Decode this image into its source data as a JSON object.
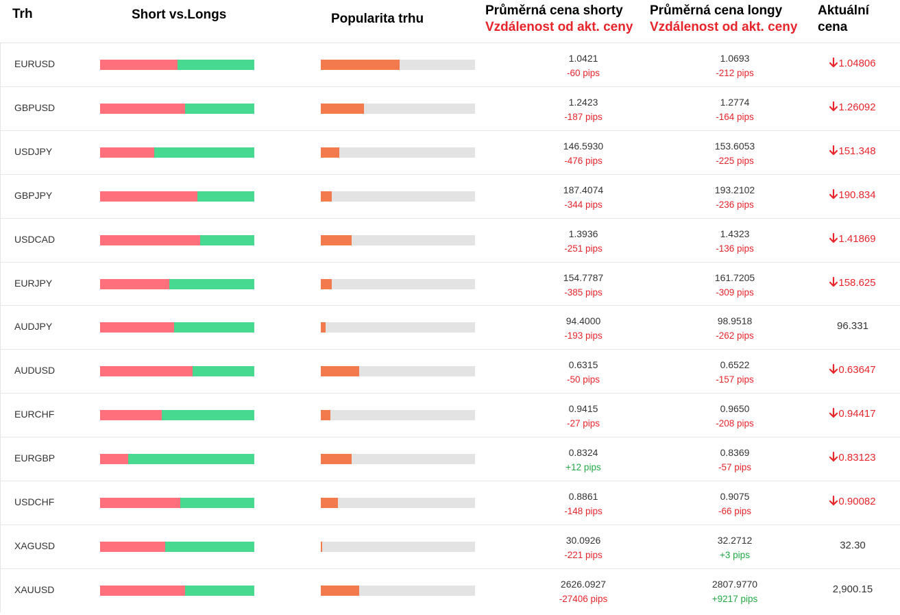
{
  "header": {
    "trh": "Trh",
    "short_vs_longs": "Short vs.Longs",
    "popularita": "Popularita trhu",
    "avg_short_title": "Průměrná cena shorty",
    "avg_short_sub": "Vzdálenost od akt. ceny",
    "avg_long_title": "Průměrná cena longy",
    "avg_long_sub": "Vzdálenost od akt. ceny",
    "current_line1": "Aktuální",
    "current_line2": "cena"
  },
  "colors": {
    "short": "#ff707c",
    "long": "#47d98f",
    "popularity": "#f27a4c",
    "popularity_track": "#e3e3e3",
    "negative": "#e8242b",
    "positive": "#22a844"
  },
  "rows": [
    {
      "market": "EURUSD",
      "short_ratio": 0.5,
      "popularity": 0.51,
      "avg_short": "1.0421",
      "short_dist": "-60 pips",
      "avg_long": "1.0693",
      "long_dist": "-212 pips",
      "current": "1.04806",
      "trend": "down"
    },
    {
      "market": "GBPUSD",
      "short_ratio": 0.55,
      "popularity": 0.28,
      "avg_short": "1.2423",
      "short_dist": "-187 pips",
      "avg_long": "1.2774",
      "long_dist": "-164 pips",
      "current": "1.26092",
      "trend": "down"
    },
    {
      "market": "USDJPY",
      "short_ratio": 0.35,
      "popularity": 0.12,
      "avg_short": "146.5930",
      "short_dist": "-476 pips",
      "avg_long": "153.6053",
      "long_dist": "-225 pips",
      "current": "151.348",
      "trend": "down"
    },
    {
      "market": "GBPJPY",
      "short_ratio": 0.63,
      "popularity": 0.07,
      "avg_short": "187.4074",
      "short_dist": "-344 pips",
      "avg_long": "193.2102",
      "long_dist": "-236 pips",
      "current": "190.834",
      "trend": "down"
    },
    {
      "market": "USDCAD",
      "short_ratio": 0.65,
      "popularity": 0.2,
      "avg_short": "1.3936",
      "short_dist": "-251 pips",
      "avg_long": "1.4323",
      "long_dist": "-136 pips",
      "current": "1.41869",
      "trend": "down"
    },
    {
      "market": "EURJPY",
      "short_ratio": 0.45,
      "popularity": 0.07,
      "avg_short": "154.7787",
      "short_dist": "-385 pips",
      "avg_long": "161.7205",
      "long_dist": "-309 pips",
      "current": "158.625",
      "trend": "down"
    },
    {
      "market": "AUDJPY",
      "short_ratio": 0.48,
      "popularity": 0.03,
      "avg_short": "94.4000",
      "short_dist": "-193 pips",
      "avg_long": "98.9518",
      "long_dist": "-262 pips",
      "current": "96.331",
      "trend": "none"
    },
    {
      "market": "AUDUSD",
      "short_ratio": 0.6,
      "popularity": 0.25,
      "avg_short": "0.6315",
      "short_dist": "-50 pips",
      "avg_long": "0.6522",
      "long_dist": "-157 pips",
      "current": "0.63647",
      "trend": "down"
    },
    {
      "market": "EURCHF",
      "short_ratio": 0.4,
      "popularity": 0.06,
      "avg_short": "0.9415",
      "short_dist": "-27 pips",
      "avg_long": "0.9650",
      "long_dist": "-208 pips",
      "current": "0.94417",
      "trend": "down"
    },
    {
      "market": "EURGBP",
      "short_ratio": 0.18,
      "popularity": 0.2,
      "avg_short": "0.8324",
      "short_dist": "+12 pips",
      "avg_long": "0.8369",
      "long_dist": "-57 pips",
      "current": "0.83123",
      "trend": "down"
    },
    {
      "market": "USDCHF",
      "short_ratio": 0.52,
      "popularity": 0.11,
      "avg_short": "0.8861",
      "short_dist": "-148 pips",
      "avg_long": "0.9075",
      "long_dist": "-66 pips",
      "current": "0.90082",
      "trend": "down"
    },
    {
      "market": "XAGUSD",
      "short_ratio": 0.42,
      "popularity": 0.01,
      "avg_short": "30.0926",
      "short_dist": "-221 pips",
      "avg_long": "32.2712",
      "long_dist": "+3 pips",
      "current": "32.30",
      "trend": "none"
    },
    {
      "market": "XAUUSD",
      "short_ratio": 0.55,
      "popularity": 0.25,
      "avg_short": "2626.0927",
      "short_dist": "-27406 pips",
      "avg_long": "2807.9770",
      "long_dist": "+9217 pips",
      "current": "2,900.15",
      "trend": "none"
    }
  ]
}
